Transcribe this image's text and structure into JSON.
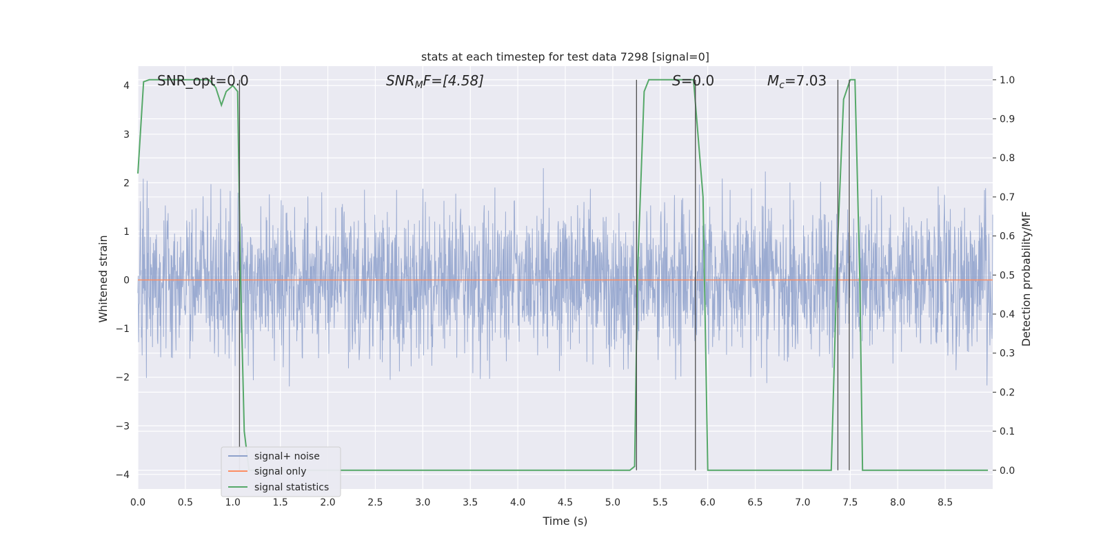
{
  "chart_data": {
    "type": "line",
    "title": "stats at each timestep for test data 7298 [signal=0]",
    "xlabel": "Time (s)",
    "ylabel": "Whitened strain",
    "y2label": "Detection probability/MF",
    "xlim": [
      0.0,
      9.0
    ],
    "ylim": [
      -4.3,
      4.4
    ],
    "y2lim": [
      -0.048,
      1.035
    ],
    "xticks": [
      "0.0",
      "0.5",
      "1.0",
      "1.5",
      "2.0",
      "2.5",
      "3.0",
      "3.5",
      "4.0",
      "4.5",
      "5.0",
      "5.5",
      "6.0",
      "6.5",
      "7.0",
      "7.5",
      "8.0",
      "8.5"
    ],
    "yticks": [
      "4",
      "3",
      "2",
      "1",
      "0",
      "−1",
      "−2",
      "−3",
      "−4"
    ],
    "y2ticks": [
      "1.0",
      "0.9",
      "0.8",
      "0.7",
      "0.6",
      "0.5",
      "0.4",
      "0.3",
      "0.2",
      "0.1",
      "0.0"
    ],
    "grid": true,
    "legend_position": "lower-left",
    "annotations": {
      "snr_opt": "SNR_opt=0.0",
      "snr_mf_sym": "SNR",
      "snr_mf_sub": "M",
      "snr_mf_rest": "F=[4.58]",
      "s_sym": "S",
      "s_rest": "=0.0",
      "mc_sym": "M",
      "mc_sub": "c",
      "mc_rest": "=7.03"
    },
    "colors": {
      "noise": "#8da0cb",
      "signal": "#fc8d62",
      "stats": "#55a868",
      "vline": "#4d4d4d",
      "bg": "#eaeaf2"
    },
    "series": [
      {
        "name": "signal+ noise",
        "axis": "left",
        "description_range": [
          -4.0,
          4.0
        ],
        "noise_std": 0.78
      },
      {
        "name": "signal only",
        "axis": "left",
        "values_constant": 0.0
      },
      {
        "name": "signal statistics",
        "axis": "right",
        "x": [
          0.0,
          0.06,
          0.12,
          0.3,
          0.5,
          0.6,
          0.75,
          0.82,
          0.88,
          0.93,
          1.0,
          1.05,
          1.08,
          1.12,
          1.17,
          1.5,
          2.0,
          3.0,
          4.0,
          5.0,
          5.18,
          5.23,
          5.26,
          5.33,
          5.38,
          5.5,
          5.7,
          5.85,
          5.95,
          6.0,
          6.5,
          7.0,
          7.3,
          7.37,
          7.43,
          7.5,
          7.55,
          7.6,
          7.63,
          8.0,
          8.5,
          8.95
        ],
        "y": [
          0.76,
          0.995,
          1.0,
          1.0,
          1.0,
          1.0,
          1.0,
          0.98,
          0.935,
          0.97,
          0.985,
          0.97,
          0.5,
          0.1,
          0.0,
          0.0,
          0.0,
          0.0,
          0.0,
          0.0,
          0.0,
          0.01,
          0.5,
          0.97,
          1.0,
          1.0,
          1.0,
          1.0,
          0.7,
          0.0,
          0.0,
          0.0,
          0.0,
          0.6,
          0.95,
          1.0,
          1.0,
          0.5,
          0.0,
          0.0,
          0.0,
          0.0
        ]
      }
    ],
    "vlines_x": [
      1.07,
      5.25,
      5.87,
      7.37,
      7.49
    ]
  }
}
